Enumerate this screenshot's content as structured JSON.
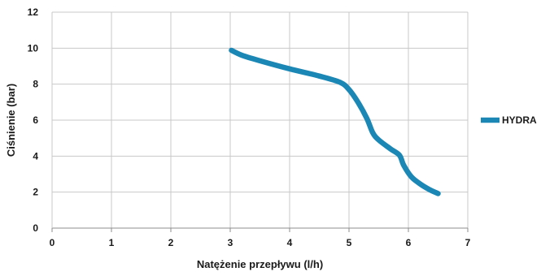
{
  "chart_data": {
    "type": "line",
    "title": "",
    "xlabel": "Natężenie przepływu (l/h)",
    "ylabel": "Ciśnienie (bar)",
    "xlim": [
      0,
      7
    ],
    "ylim": [
      0,
      12
    ],
    "xticks": [
      0,
      1,
      2,
      3,
      4,
      5,
      6,
      7
    ],
    "yticks": [
      0,
      2,
      4,
      6,
      8,
      10,
      12
    ],
    "grid": true,
    "legend_position": "right",
    "series": [
      {
        "name": "HYDRA",
        "color": "#1a87b5",
        "x": [
          3.02,
          3.2,
          3.5,
          4.0,
          4.5,
          4.85,
          5.0,
          5.15,
          5.3,
          5.4,
          5.5,
          5.7,
          5.85,
          5.92,
          6.05,
          6.2,
          6.35,
          6.5
        ],
        "y": [
          9.88,
          9.6,
          9.3,
          8.85,
          8.45,
          8.1,
          7.7,
          7.0,
          6.1,
          5.3,
          4.9,
          4.4,
          4.05,
          3.5,
          2.85,
          2.45,
          2.15,
          1.92
        ]
      }
    ]
  }
}
